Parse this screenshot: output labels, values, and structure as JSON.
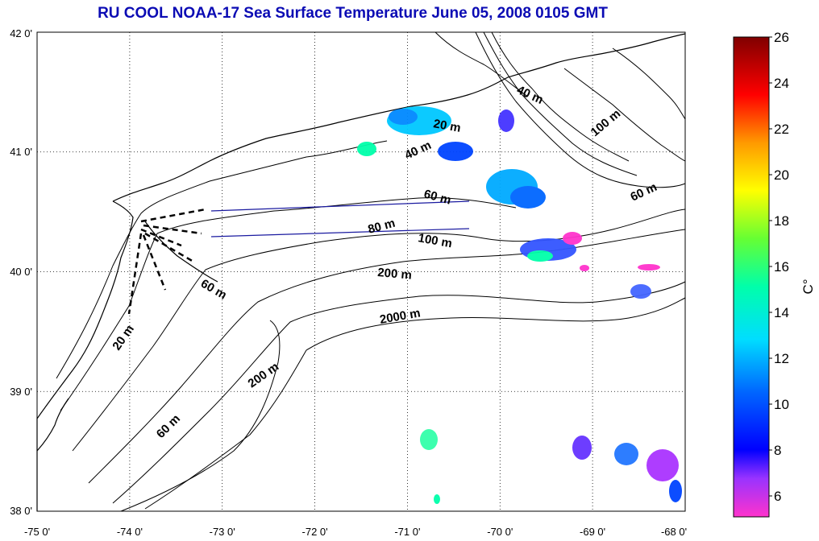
{
  "title": "RU COOL  NOAA-17 Sea Surface Temperature June 05, 2008 0105 GMT",
  "map": {
    "x_ticks": [
      "-75 0'",
      "-74 0'",
      "-73 0'",
      "-72 0'",
      "-71 0'",
      "-70 0'",
      "-69 0'",
      "-68 0'"
    ],
    "y_ticks": [
      "42 0'",
      "41 0'",
      "40 0'",
      "39 0'",
      "38 0'"
    ],
    "lon_range": [
      -75,
      -68
    ],
    "lat_range": [
      38,
      42
    ],
    "grid": "dotted"
  },
  "contour_labels": [
    "20 m",
    "40 m",
    "40 m",
    "60 m",
    "80 m",
    "100 m",
    "100 m",
    "60 m",
    "200 m",
    "60 m",
    "2000 m",
    "20 m",
    "200 m",
    "60 m"
  ],
  "colorbar": {
    "unit": "C°",
    "ticks": [
      "26",
      "24",
      "22",
      "20",
      "18",
      "16",
      "14",
      "12",
      "10",
      "8",
      "6"
    ],
    "range": [
      5,
      26
    ],
    "colors": [
      "#ff00ff",
      "#7f00ff",
      "#0000ff",
      "#007fff",
      "#00ffff",
      "#00ff7f",
      "#7fff00",
      "#ffff00",
      "#ff7f00",
      "#ff0000",
      "#7f0000"
    ]
  }
}
